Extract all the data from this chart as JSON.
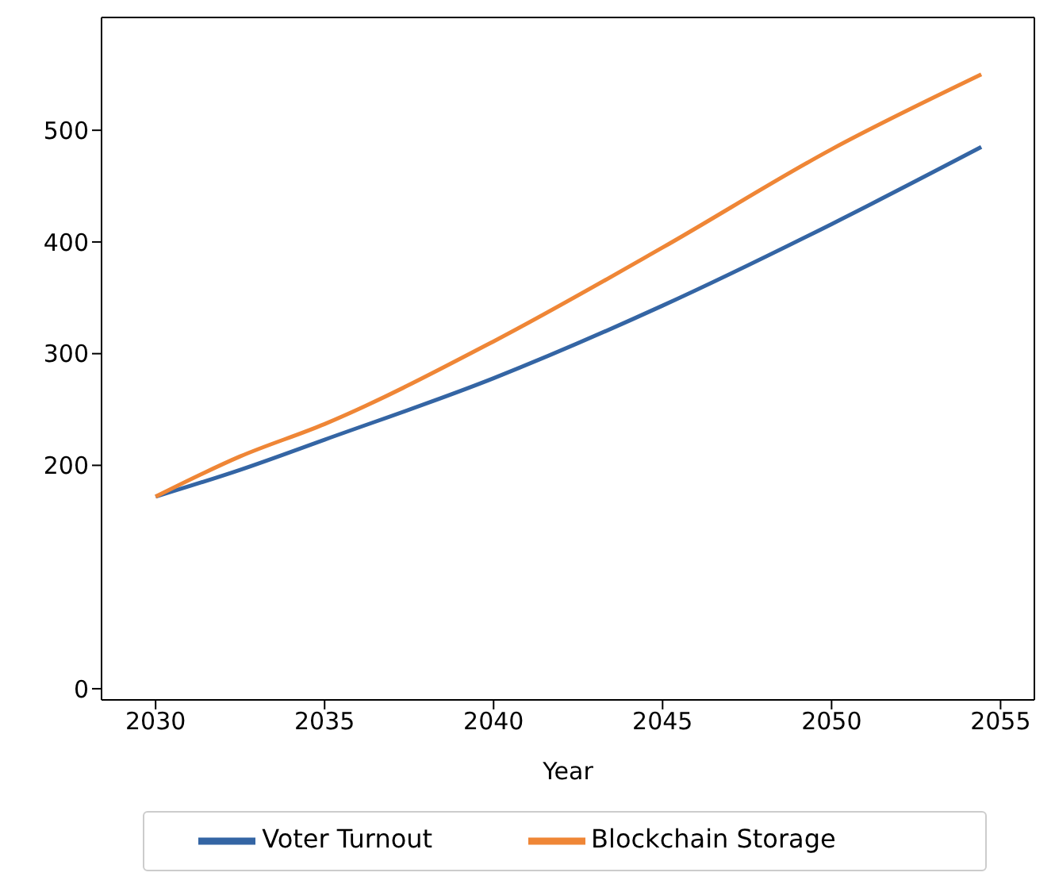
{
  "chart_data": {
    "type": "line",
    "xlabel": "Year",
    "x": [
      2030,
      2032.5,
      2035,
      2040,
      2045,
      2050,
      2054.43
    ],
    "series": [
      {
        "name": "Voter Turnout",
        "color": "#3465a4",
        "values": [
          172,
          196,
          223,
          278,
          343,
          416,
          485
        ]
      },
      {
        "name": "Blockchain Storage",
        "color": "#ef8636",
        "values": [
          172,
          208,
          237,
          311,
          395,
          483,
          550
        ]
      }
    ],
    "xlim": [
      2028.4,
      2056
    ],
    "xticks": [
      2030,
      2035,
      2040,
      2045,
      2050,
      2055
    ],
    "ylim": [
      -10,
      601
    ],
    "yticks": [
      0,
      200,
      300,
      400,
      500
    ],
    "grid": false,
    "legend": "bottom",
    "marker": "none",
    "line_style": "solid"
  }
}
